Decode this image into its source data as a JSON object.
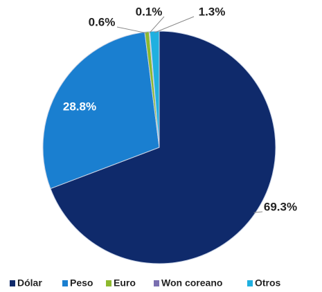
{
  "chart_data": {
    "type": "pie",
    "categories": [
      "Dólar",
      "Peso",
      "Euro",
      "Won coreano",
      "Otros"
    ],
    "values": [
      69.3,
      28.8,
      0.6,
      0.1,
      1.3
    ],
    "value_labels": [
      "69.3%",
      "28.8%",
      "0.6%",
      "0.1%",
      "1.3%"
    ],
    "colors": [
      "#0f2a6b",
      "#1a7fd0",
      "#8db92e",
      "#7a6fb0",
      "#1fb0e0"
    ],
    "legend": "bottom"
  }
}
